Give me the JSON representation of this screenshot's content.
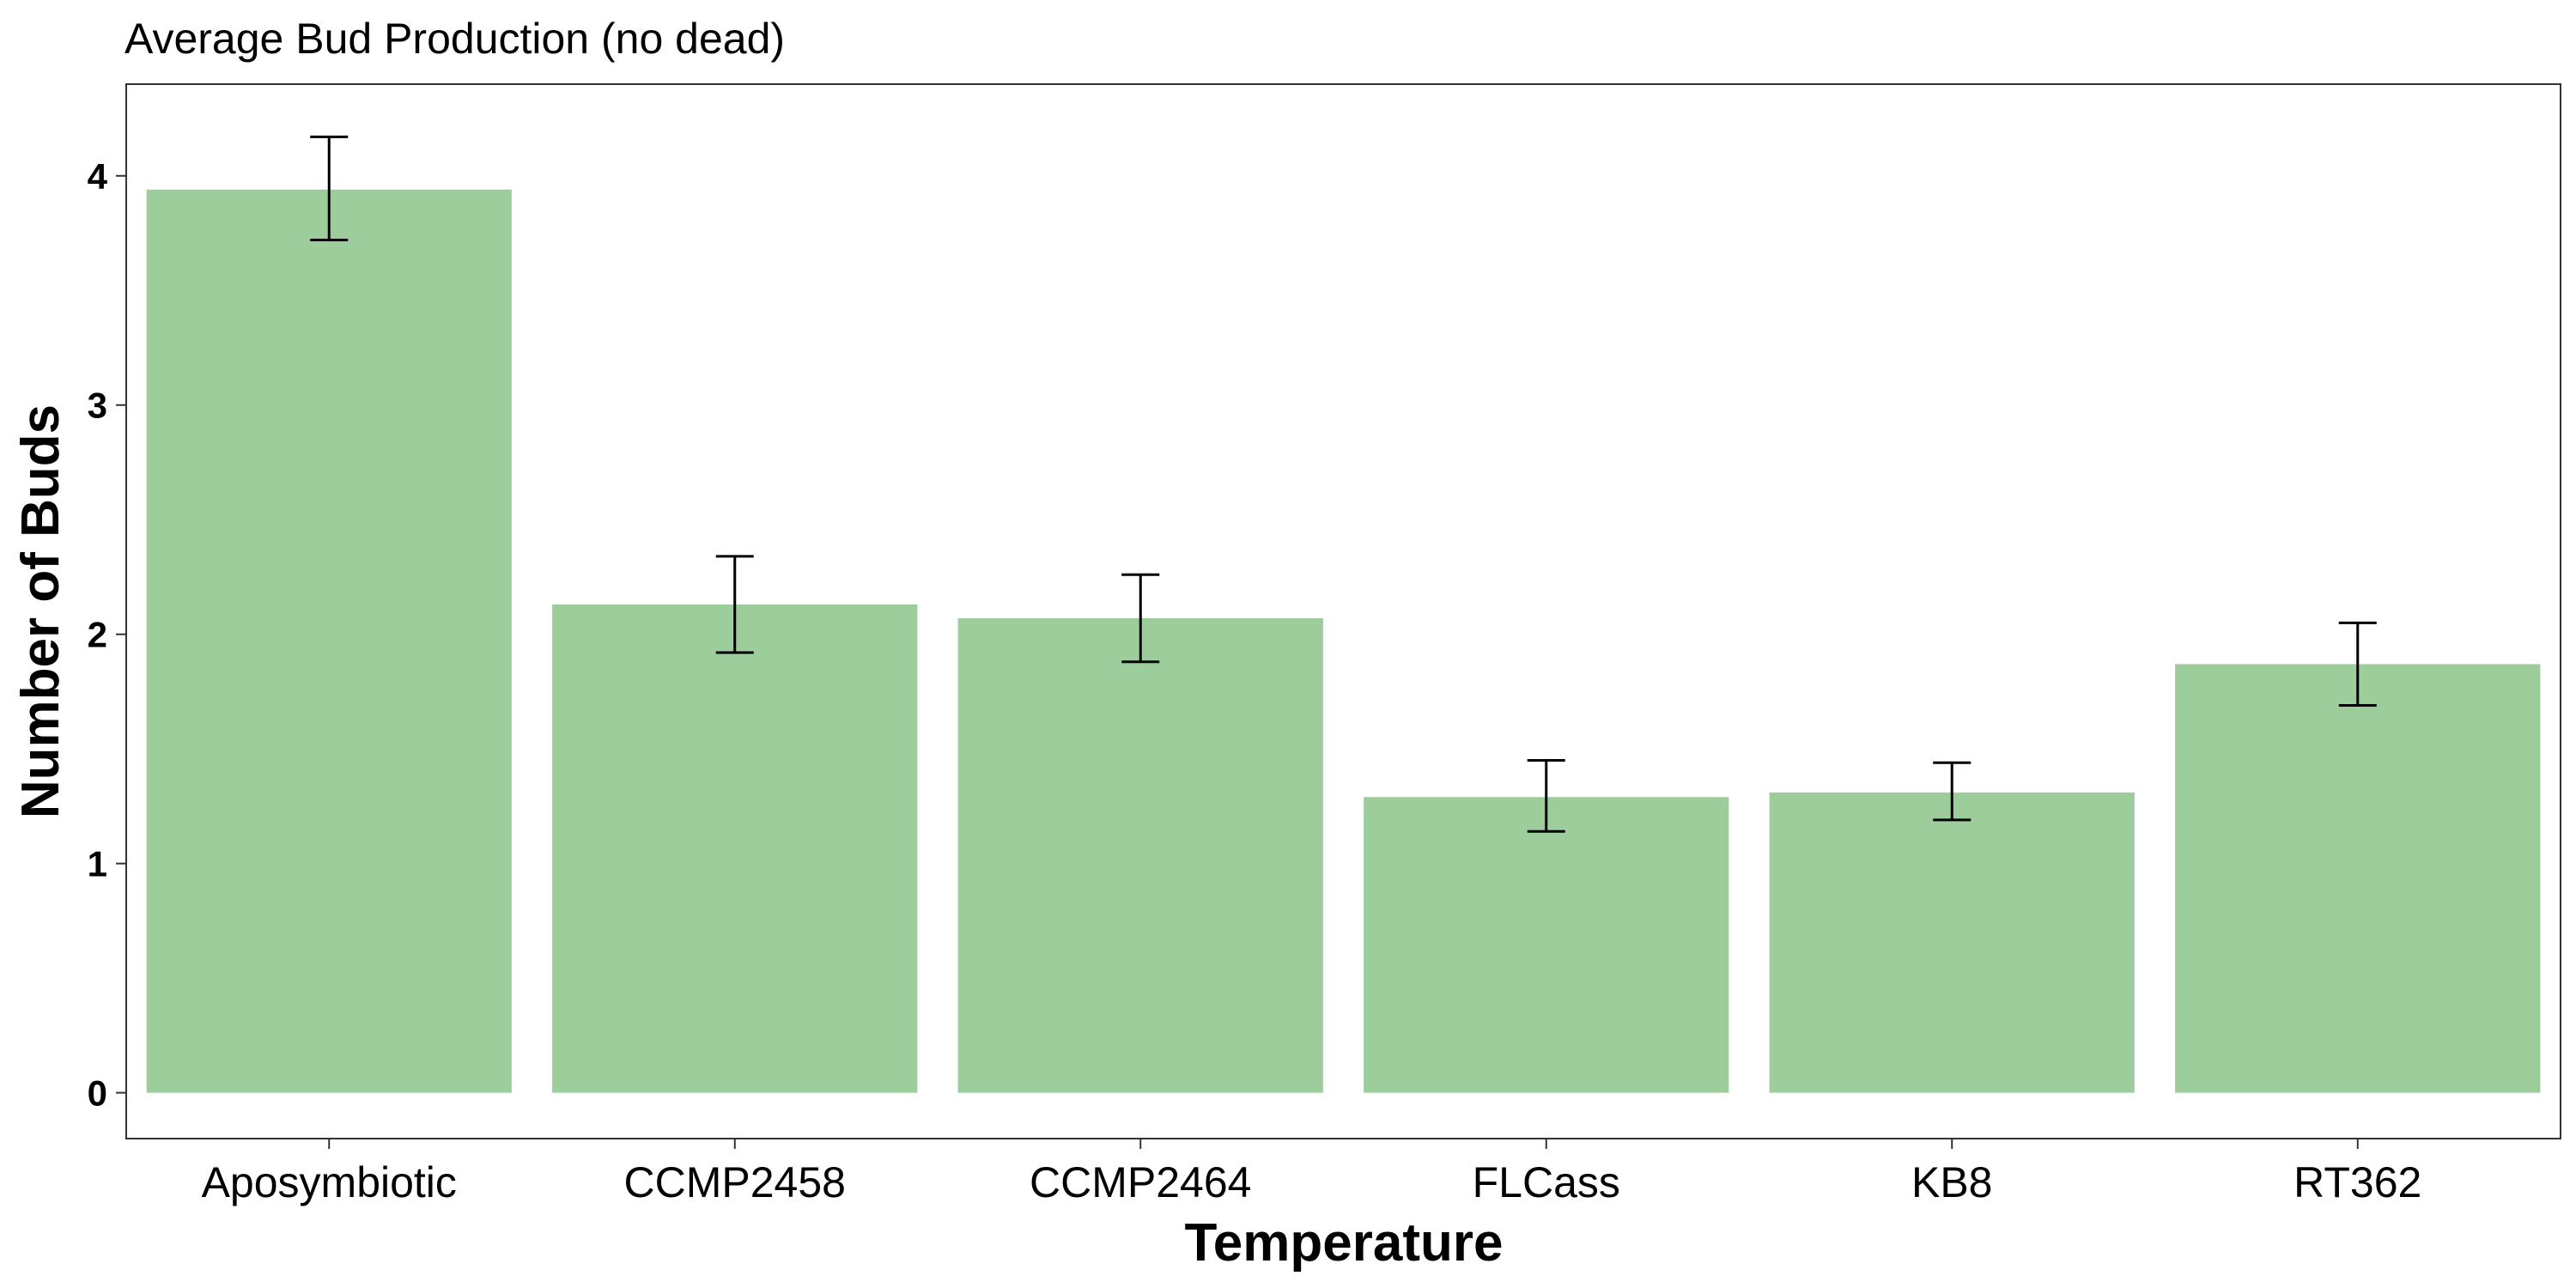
{
  "chart_data": {
    "type": "bar",
    "title": "Average Bud Production (no dead)",
    "xlabel": "Temperature",
    "ylabel": "Number of Buds",
    "categories": [
      "Aposymbiotic",
      "CCMP2458",
      "CCMP2464",
      "FLCass",
      "KB8",
      "RT362"
    ],
    "values": [
      3.94,
      2.13,
      2.07,
      1.29,
      1.31,
      1.87
    ],
    "error_low": [
      3.72,
      1.92,
      1.88,
      1.14,
      1.19,
      1.69
    ],
    "error_high": [
      4.17,
      2.34,
      2.26,
      1.45,
      1.44,
      2.05
    ],
    "ylim": [
      -0.2,
      4.4
    ],
    "yticks": [
      "0",
      "1",
      "2",
      "3",
      "4"
    ],
    "bar_color": "#9ccd9a",
    "grid": false,
    "legend": "none"
  }
}
